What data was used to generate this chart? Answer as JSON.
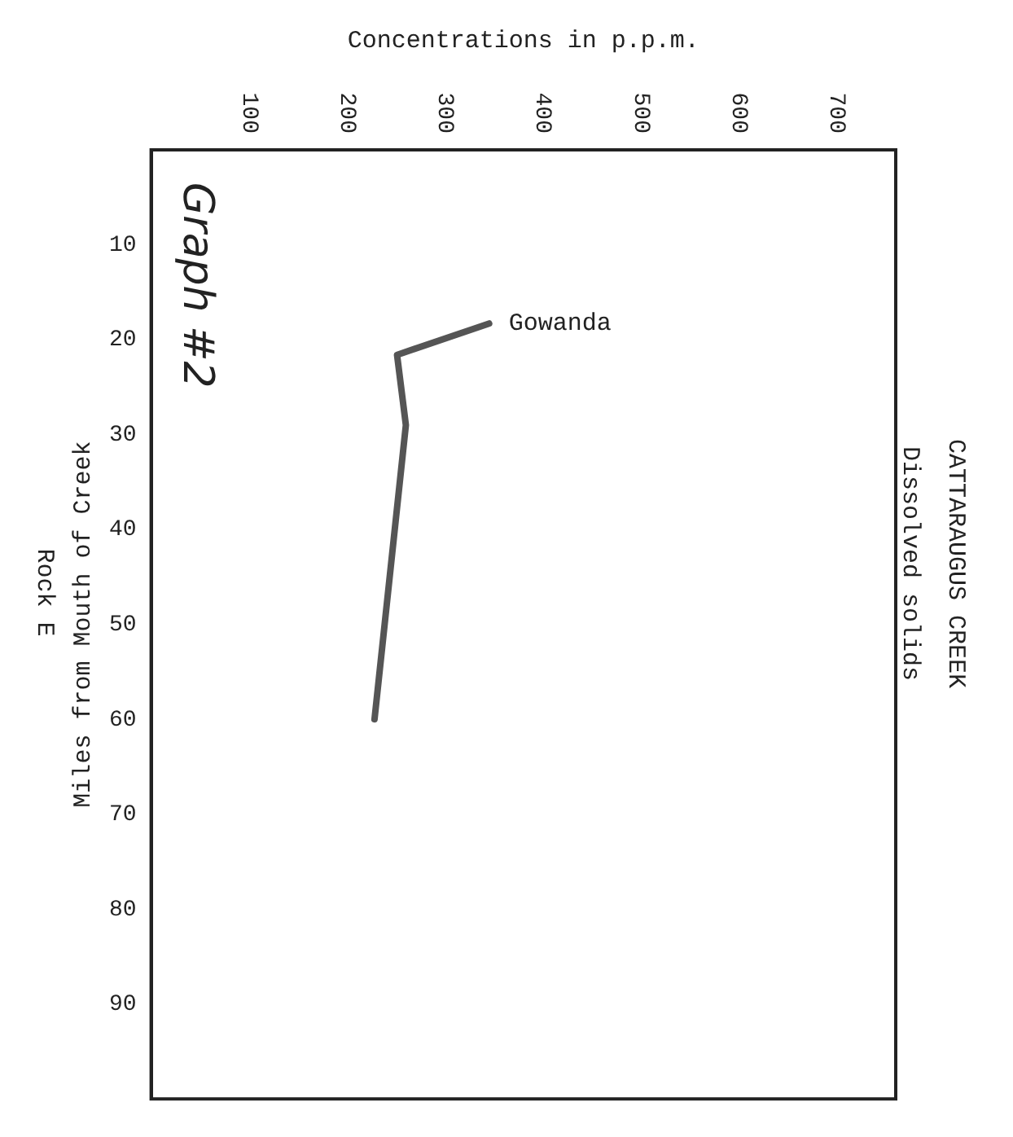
{
  "chart_data": {
    "type": "line",
    "orientation": "horizontal",
    "title": "CATTARAUGUS CREEK",
    "subtitle": "Dissolved solids",
    "xlabel": "Concentrations in p.p.m.",
    "ylabel": "Miles from Mouth of Creek",
    "x": [
      18.3,
      21.6,
      29,
      60
    ],
    "series": [
      {
        "color": "#555555",
        "values": [
          345,
          251,
          260,
          228
        ]
      }
    ],
    "xlim": [
      0,
      760
    ],
    "xticks": [
      100,
      200,
      300,
      400,
      500,
      600,
      700
    ],
    "ylim": [
      100,
      0
    ],
    "yticks": [
      10,
      20,
      30,
      40,
      50,
      60,
      70,
      80,
      90
    ],
    "annotations": [
      "Gowanda",
      "Graph #2",
      "Rock E"
    ],
    "grid": false,
    "legend": false,
    "marker": "none",
    "line_style": "solid"
  }
}
